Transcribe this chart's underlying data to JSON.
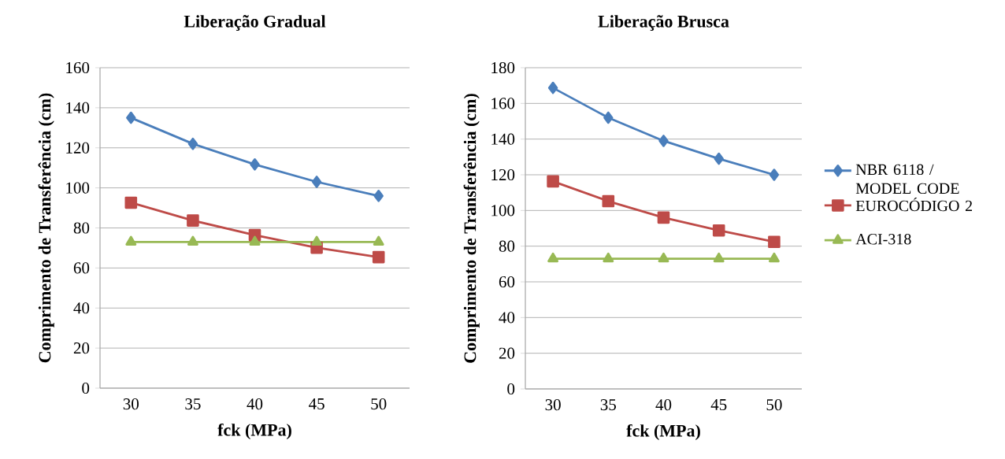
{
  "chart_data": [
    {
      "type": "line",
      "title": "Liberação Gradual",
      "xlabel": "fck (MPa)",
      "ylabel": "Comprimento de Transferência (cm)",
      "categories": [
        "30",
        "35",
        "40",
        "45",
        "50"
      ],
      "ylim": [
        0,
        160
      ],
      "yticks": [
        0,
        20,
        40,
        60,
        80,
        100,
        120,
        140,
        160
      ],
      "grid": "y",
      "legend": false,
      "series": [
        {
          "color": "#4a7ebb",
          "marker": "diamond",
          "values": [
            135,
            122,
            111.7,
            103,
            96
          ]
        },
        {
          "color": "#be4b48",
          "marker": "square",
          "values": [
            92.6,
            83.7,
            76.4,
            70.1,
            65.4
          ]
        },
        {
          "color": "#98b954",
          "marker": "triangle",
          "values": [
            73,
            73,
            73,
            73,
            73
          ]
        }
      ]
    },
    {
      "type": "line",
      "title": "Liberação Brusca",
      "xlabel": "fck (MPa)",
      "ylabel": "Comprimento de Transferência (cm)",
      "categories": [
        "30",
        "35",
        "40",
        "45",
        "50"
      ],
      "ylim": [
        0,
        180
      ],
      "yticks": [
        0,
        20,
        40,
        60,
        80,
        100,
        120,
        140,
        160,
        180
      ],
      "grid": "y",
      "legend": "right",
      "series": [
        {
          "name": "NBR 6118 / MODEL CODE",
          "color": "#4a7ebb",
          "marker": "diamond",
          "values": [
            168.7,
            152,
            139,
            129,
            120
          ]
        },
        {
          "name": "EUROCÓDIGO 2",
          "color": "#be4b48",
          "marker": "square",
          "values": [
            116.3,
            105.2,
            96,
            88.8,
            82.4
          ]
        },
        {
          "name": "ACI-318",
          "color": "#98b954",
          "marker": "triangle",
          "values": [
            73,
            73,
            73,
            73,
            73
          ]
        }
      ]
    }
  ]
}
